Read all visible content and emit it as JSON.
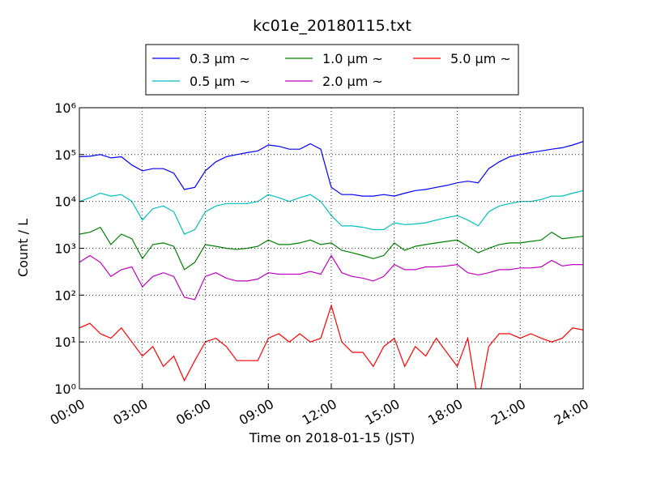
{
  "chart_data": {
    "type": "line",
    "title": "kc01e_20180115.txt",
    "x_label": "Time on 2018-01-15 (JST)",
    "y_label": "Count / L",
    "log_y": true,
    "grid": true,
    "legend": "top-outside",
    "x": [
      0,
      0.5,
      1,
      1.5,
      2,
      2.5,
      3,
      3.5,
      4,
      4.5,
      5,
      5.5,
      6,
      6.5,
      7,
      7.5,
      8,
      8.5,
      9,
      9.5,
      10,
      10.5,
      11,
      11.5,
      12,
      12.5,
      13,
      13.5,
      14,
      14.5,
      15,
      15.5,
      16,
      16.5,
      17,
      17.5,
      18,
      18.5,
      19,
      19.5,
      20,
      20.5,
      21,
      21.5,
      22,
      22.5,
      23,
      23.5,
      24
    ],
    "xlim": [
      0,
      24
    ],
    "xticks": [
      {
        "value": 0,
        "label": "00:00"
      },
      {
        "value": 3,
        "label": "03:00"
      },
      {
        "value": 6,
        "label": "06:00"
      },
      {
        "value": 9,
        "label": "09:00"
      },
      {
        "value": 12,
        "label": "12:00"
      },
      {
        "value": 15,
        "label": "15:00"
      },
      {
        "value": 18,
        "label": "18:00"
      },
      {
        "value": 21,
        "label": "21:00"
      },
      {
        "value": 24,
        "label": "24:00"
      }
    ],
    "ylim": [
      1,
      1000000
    ],
    "yticks": [
      {
        "value": 1,
        "label": "10⁰"
      },
      {
        "value": 10,
        "label": "10¹"
      },
      {
        "value": 100,
        "label": "10²"
      },
      {
        "value": 1000,
        "label": "10³"
      },
      {
        "value": 10000,
        "label": "10⁴"
      },
      {
        "value": 100000,
        "label": "10⁵"
      },
      {
        "value": 1000000,
        "label": "10⁶"
      }
    ],
    "series": [
      {
        "name": "0.3 μm ~",
        "color": "#0000ff",
        "values": [
          90000,
          92000,
          100000,
          85000,
          90000,
          60000,
          45000,
          50000,
          50000,
          40000,
          18000,
          20000,
          45000,
          70000,
          90000,
          100000,
          110000,
          120000,
          160000,
          150000,
          130000,
          130000,
          170000,
          130000,
          20000,
          14000,
          14000,
          13000,
          13000,
          14000,
          13000,
          15000,
          17000,
          18000,
          20000,
          22000,
          25000,
          27000,
          25000,
          50000,
          70000,
          90000,
          100000,
          110000,
          120000,
          130000,
          140000,
          160000,
          190000
        ]
      },
      {
        "name": "0.5 μm ~",
        "color": "#00bfbf",
        "values": [
          10000,
          12000,
          15000,
          13000,
          14000,
          10000,
          4000,
          7000,
          8000,
          6000,
          2000,
          2500,
          6000,
          8000,
          9000,
          9000,
          9000,
          10000,
          14000,
          12000,
          10000,
          12000,
          14000,
          10000,
          5000,
          3000,
          3000,
          2800,
          2500,
          2500,
          3500,
          3200,
          3300,
          3500,
          4000,
          4500,
          5000,
          4000,
          3000,
          6000,
          8000,
          9000,
          10000,
          10000,
          11000,
          13000,
          13000,
          15000,
          17000
        ]
      },
      {
        "name": "1.0 μm ~",
        "color": "#008000",
        "values": [
          2000,
          2200,
          2800,
          1200,
          2000,
          1600,
          600,
          1200,
          1300,
          1100,
          350,
          500,
          1200,
          1100,
          1000,
          950,
          1000,
          1100,
          1500,
          1200,
          1200,
          1300,
          1500,
          1200,
          1300,
          900,
          800,
          700,
          600,
          700,
          1300,
          900,
          1100,
          1200,
          1300,
          1400,
          1500,
          1100,
          800,
          1000,
          1200,
          1300,
          1300,
          1400,
          1500,
          2200,
          1600,
          1700,
          1800
        ]
      },
      {
        "name": "2.0 μm ~",
        "color": "#bf00bf",
        "values": [
          500,
          700,
          500,
          250,
          350,
          400,
          150,
          250,
          300,
          250,
          90,
          80,
          250,
          300,
          230,
          200,
          200,
          220,
          300,
          280,
          280,
          280,
          320,
          280,
          700,
          300,
          250,
          230,
          200,
          250,
          450,
          350,
          350,
          400,
          400,
          420,
          450,
          300,
          270,
          300,
          350,
          350,
          380,
          380,
          400,
          550,
          420,
          450,
          450
        ]
      },
      {
        "name": "5.0 μm ~",
        "color": "#ff0000",
        "values": [
          20,
          25,
          15,
          12,
          20,
          10,
          5,
          8,
          3,
          5,
          1.5,
          4,
          10,
          12,
          8,
          4,
          4,
          4,
          12,
          15,
          10,
          15,
          10,
          12,
          60,
          10,
          6,
          6,
          3,
          8,
          12,
          3,
          8,
          5,
          12,
          6,
          3,
          12,
          0.5,
          8,
          15,
          15,
          12,
          15,
          12,
          10,
          12,
          20,
          18
        ]
      }
    ]
  }
}
